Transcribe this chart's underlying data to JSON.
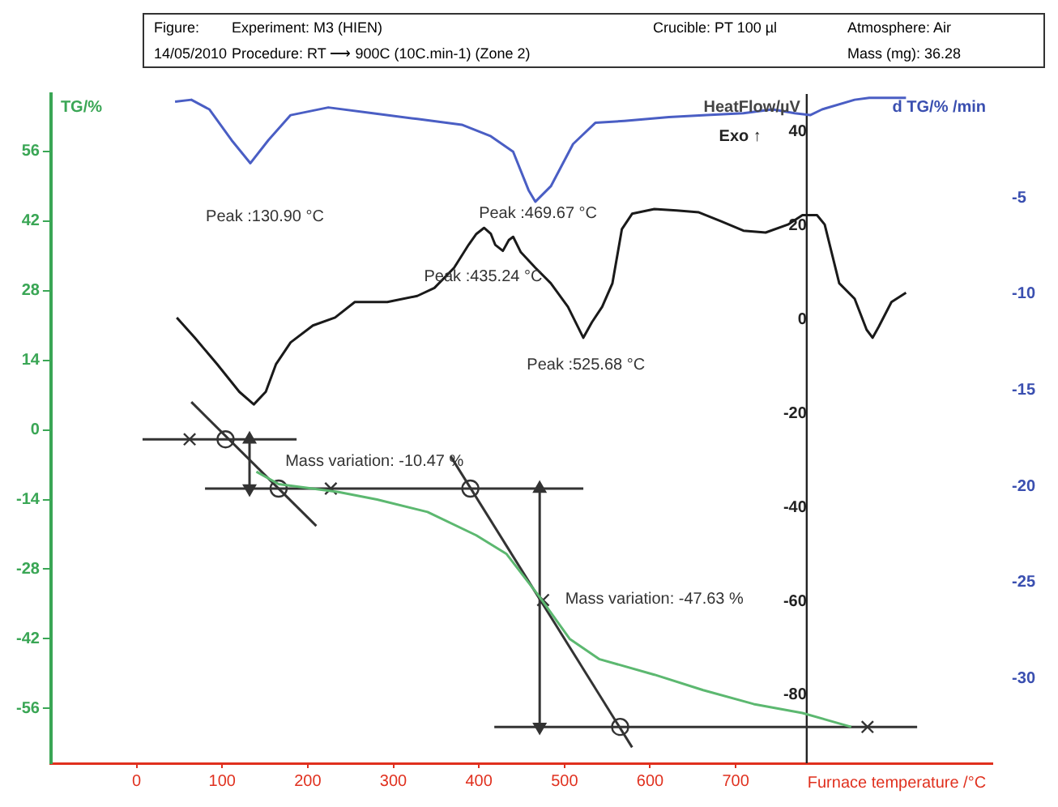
{
  "chart_data": {
    "type": "line",
    "xlabel": "Furnace temperature /°C",
    "ylabel": "TG/%",
    "y2label": "HeatFlow/µV",
    "y3label": "d TG/% /min",
    "xlim": [
      -100,
      1000
    ],
    "xticks": [
      0,
      100,
      200,
      300,
      400,
      500,
      600,
      700
    ],
    "ylim": [
      -67,
      67.5
    ],
    "yticks": [
      56,
      42,
      28,
      14,
      0,
      -14,
      -28,
      -42,
      -56
    ],
    "y2lim": [
      -94.5,
      48
    ],
    "y2ticks": [
      40,
      20,
      0,
      -20,
      -40,
      -60,
      -80
    ],
    "y3lim": [
      -34.4,
      0.4
    ],
    "y3ticks": [
      -5,
      -10,
      -15,
      -20,
      -25,
      -30
    ],
    "annotations": [
      "Figure:",
      "Experiment: M3 (HIEN)",
      "Crucible: PT 100 µl",
      "Atmosphere: Air",
      "14/05/2010",
      "Procedure: RT ⟶ 900C (10C.min-1) (Zone 2)",
      "Mass (mg): 36.28",
      "Exo ↑",
      "Peak :130.90 °C",
      "Peak :469.67 °C",
      "Peak :435.24 °C",
      "Peak :525.68 °C",
      "Mass variation: -10.47 %",
      "Mass variation: -47.63 %"
    ],
    "ref_lines": [
      {
        "axis": "x",
        "value": 783,
        "color": "#222222"
      }
    ],
    "series": [
      {
        "axis": "y3",
        "color": "#4a5ec4",
        "marker": "none",
        "x": [
          45,
          64,
          85,
          111,
          133,
          154,
          180,
          224,
          276,
          328,
          380,
          414,
          440,
          458,
          466,
          484,
          510,
          536,
          570,
          622,
          666,
          709,
          743,
          769,
          787,
          801,
          839,
          856,
          899
        ],
        "values": [
          0.0,
          0.1,
          -0.4,
          -2.0,
          -3.2,
          -2.0,
          -0.7,
          -0.3,
          -0.6,
          -0.9,
          -1.2,
          -1.8,
          -2.6,
          -4.6,
          -5.2,
          -4.4,
          -2.2,
          -1.1,
          -1.0,
          -0.8,
          -0.7,
          -0.6,
          -0.4,
          -0.6,
          -0.7,
          -0.4,
          0.1,
          0.2,
          0.2
        ]
      },
      {
        "axis": "y2",
        "color": "#1a1a1a",
        "marker": "none",
        "x": [
          47,
          68,
          94,
          120,
          137,
          151,
          163,
          180,
          206,
          232,
          255,
          267,
          293,
          328,
          348,
          371,
          388,
          397,
          406,
          414,
          419,
          428,
          435,
          440,
          449,
          466,
          484,
          504,
          522,
          532,
          544,
          556,
          567,
          579,
          605,
          631,
          657,
          683,
          709,
          735,
          761,
          778,
          795,
          804,
          821,
          839,
          853,
          860,
          867,
          882,
          899
        ],
        "values": [
          0.4,
          -3.9,
          -9.5,
          -15.4,
          -18.1,
          -15.4,
          -9.5,
          -4.9,
          -1.3,
          0.4,
          3.7,
          3.7,
          3.7,
          5.0,
          6.7,
          11.0,
          15.9,
          18.2,
          19.5,
          18.2,
          15.9,
          14.6,
          16.9,
          17.6,
          14.3,
          11.0,
          7.7,
          2.7,
          -3.9,
          -0.6,
          2.7,
          7.7,
          19.2,
          22.5,
          23.5,
          23.2,
          22.8,
          20.9,
          18.9,
          18.5,
          20.2,
          22.2,
          22.2,
          20.2,
          7.7,
          4.4,
          -2.2,
          -3.9,
          -1.6,
          3.7,
          5.7
        ]
      },
      {
        "color": "#5cb870",
        "marker": "none",
        "x": [
          140,
          166,
          236,
          281,
          340,
          397,
          432,
          471,
          506,
          541,
          605,
          662,
          721,
          778,
          835
        ],
        "values": [
          -8.4,
          -10.9,
          -12.5,
          -14.0,
          -16.5,
          -21.2,
          -24.9,
          -33.6,
          -42.0,
          -46.1,
          -49.2,
          -52.3,
          -55.1,
          -56.9,
          -59.7
        ]
      },
      {
        "type": "line",
        "color": "#333333",
        "marker": "none",
        "x": [
          7,
          187
        ],
        "values": [
          -1.9,
          -1.9
        ]
      },
      {
        "type": "line",
        "color": "#333333",
        "marker": "none",
        "x": [
          64,
          210
        ],
        "values": [
          5.6,
          -19.3
        ]
      },
      {
        "type": "line",
        "color": "#333333",
        "marker": "none",
        "x": [
          80,
          522
        ],
        "values": [
          -11.8,
          -11.8
        ]
      },
      {
        "type": "line",
        "color": "#333333",
        "marker": "none",
        "x": [
          367,
          579
        ],
        "values": [
          -5.3,
          -63.8
        ]
      },
      {
        "type": "line",
        "color": "#333333",
        "marker": "none",
        "x": [
          418,
          912
        ],
        "values": [
          -59.7,
          -59.7
        ]
      },
      {
        "type": "line",
        "color": "#333333",
        "marker": "triangle",
        "x": [
          132,
          132
        ],
        "values": [
          -1.9,
          -11.8
        ]
      },
      {
        "type": "line",
        "color": "#333333",
        "marker": "triangle",
        "x": [
          471,
          471
        ],
        "values": [
          -11.8,
          -59.7
        ]
      },
      {
        "type": "scatter",
        "color": "#333333",
        "marker": "cross",
        "x": [
          62,
          227,
          854,
          475
        ],
        "values": [
          -1.9,
          -11.8,
          -59.7,
          -34.2
        ]
      },
      {
        "type": "scatter",
        "color": "#333333",
        "marker": "circle",
        "x": [
          104,
          166,
          390,
          565
        ],
        "values": [
          -1.9,
          -11.8,
          -11.8,
          -59.7
        ]
      }
    ]
  }
}
